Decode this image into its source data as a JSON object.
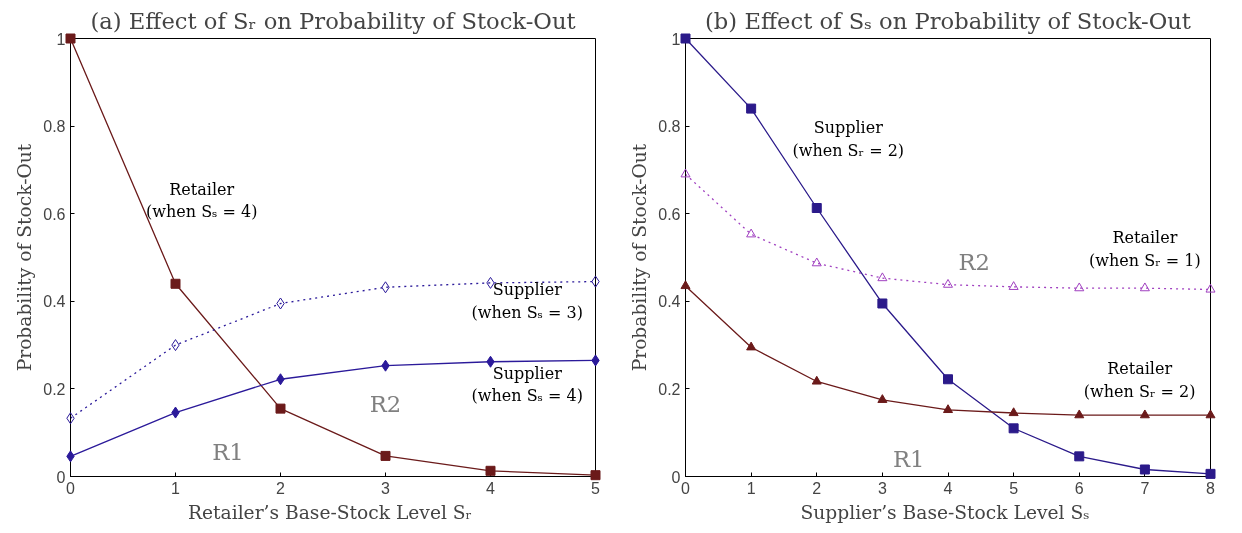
{
  "chart_data": [
    {
      "type": "line",
      "title": "(a) Effect of Sᵣ on Probability of Stock-Out",
      "xlabel": "Retailer’s Base-Stock Level  Sᵣ",
      "ylabel": "Probability of Stock-Out",
      "x": [
        0,
        1,
        2,
        3,
        4,
        5
      ],
      "xlim": [
        0,
        5
      ],
      "xticks": [
        0,
        1,
        2,
        3,
        4,
        5
      ],
      "ylim": [
        0,
        1
      ],
      "yticks": [
        0,
        {
          "value": 0.2,
          "label": "0.2"
        },
        {
          "value": 0.4,
          "label": "0.4"
        },
        {
          "value": 0.6,
          "label": "0.6"
        },
        {
          "value": 0.8,
          "label": "0.8"
        },
        1
      ],
      "grid": false,
      "legend": false,
      "series": [
        {
          "name": "Retailer\n(when Sₛ = 4)",
          "color": "#6b1a1a",
          "marker": "square",
          "line_style": "solid",
          "values": [
            1,
            0.44,
            0.155,
            0.047,
            0.013,
            0.003
          ]
        },
        {
          "name": "Supplier\n(when Sₛ = 3)",
          "color": "#2b1a9a",
          "marker": "diamond",
          "line_style": "dotted",
          "values": [
            0.133,
            0.3,
            0.395,
            0.432,
            0.442,
            0.445
          ]
        },
        {
          "name": "Supplier\n(when Sₛ = 4)",
          "color": "#2b1a9a",
          "marker": "diamond",
          "line_style": "solid",
          "values": [
            0.046,
            0.146,
            0.222,
            0.253,
            0.262,
            0.265
          ]
        }
      ],
      "annotations": [
        "R1",
        "R2"
      ]
    },
    {
      "type": "line",
      "title": "(b) Effect of Sₛ on Probability of Stock-Out",
      "xlabel": "Supplier’s Base-Stock Level  Sₛ",
      "ylabel": "Probability of Stock-Out",
      "x": [
        0,
        1,
        2,
        3,
        4,
        5,
        6,
        7,
        8
      ],
      "xlim": [
        0,
        8
      ],
      "xticks": [
        0,
        1,
        2,
        3,
        4,
        5,
        6,
        7,
        8
      ],
      "ylim": [
        0,
        1
      ],
      "yticks": [
        0,
        {
          "value": 0.2,
          "label": "0.2"
        },
        {
          "value": 0.4,
          "label": "0.4"
        },
        {
          "value": 0.6,
          "label": "0.6"
        },
        {
          "value": 0.8,
          "label": "0.8"
        },
        1
      ],
      "grid": false,
      "legend": false,
      "series": [
        {
          "name": "Supplier\n(when Sᵣ = 2)",
          "color": "#2b1a8a",
          "marker": "square",
          "line_style": "solid",
          "values": [
            1,
            0.84,
            0.613,
            0.395,
            0.222,
            0.11,
            0.046,
            0.016,
            0.006
          ]
        },
        {
          "name": "Retailer\n(when Sᵣ = 1)",
          "color": "#a040c0",
          "marker": "triangle",
          "line_style": "dotted",
          "values": [
            0.69,
            0.553,
            0.487,
            0.453,
            0.438,
            0.433,
            0.43,
            0.43,
            0.427
          ]
        },
        {
          "name": "Retailer\n(when Sᵣ = 2)",
          "color": "#6b1a1a",
          "marker": "triangle",
          "line_style": "solid",
          "values": [
            0.435,
            0.295,
            0.217,
            0.175,
            0.152,
            0.145,
            0.14,
            0.14,
            0.14
          ]
        }
      ],
      "annotations": [
        "R2",
        "R1"
      ]
    }
  ]
}
